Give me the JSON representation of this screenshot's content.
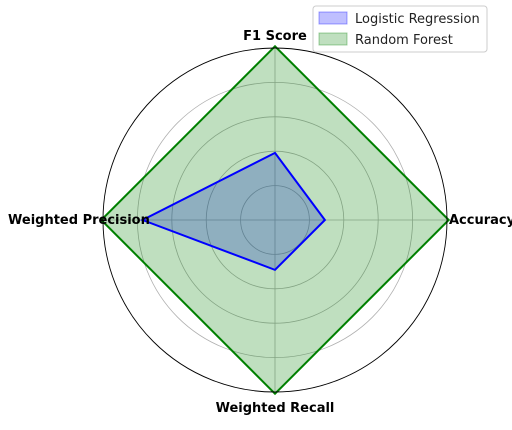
{
  "chart_data": {
    "type": "radar",
    "title": "",
    "axes": [
      "Accuracy",
      "F1 Score",
      "Weighted Precision",
      "Weighted Recall"
    ],
    "rlim": [
      0,
      1
    ],
    "rticks": [
      0.2,
      0.4,
      0.6,
      0.8,
      1.0
    ],
    "grid": true,
    "tick_labels_shown": false,
    "legend_position": "top-right",
    "series": [
      {
        "name": "Logistic Regression",
        "values": [
          0.29,
          0.39,
          0.77,
          0.29
        ],
        "line_color": "#0000ff",
        "fill_color": "#0000ff",
        "fill_opacity": 0.25
      },
      {
        "name": "Random Forest",
        "values": [
          1.01,
          1.01,
          1.01,
          1.01
        ],
        "line_color": "#008000",
        "fill_color": "#008000",
        "fill_opacity": 0.25
      }
    ]
  }
}
